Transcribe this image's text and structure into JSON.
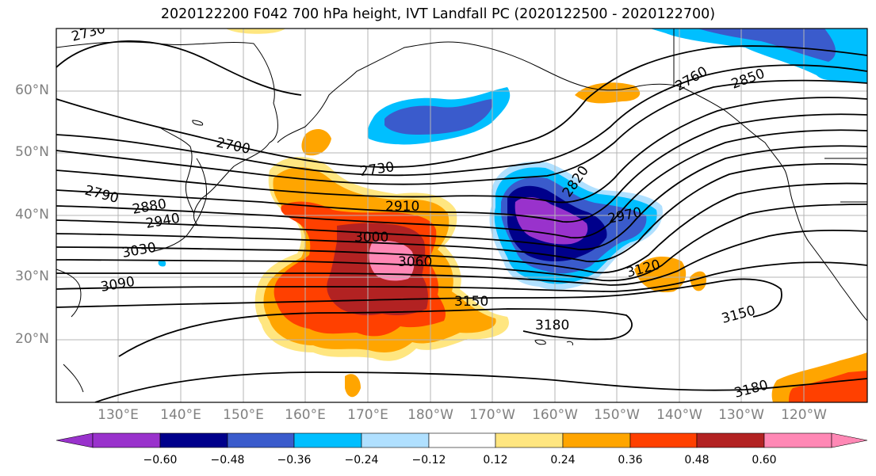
{
  "title": "2020122200 F042 700 hPa height, IVT Landfall PC (2020122500 - 2020122700)",
  "lat_labels": [
    "60°N",
    "50°N",
    "40°N",
    "30°N",
    "20°N"
  ],
  "lon_labels": [
    "130°E",
    "140°E",
    "150°E",
    "160°E",
    "170°E",
    "180°W",
    "170°W",
    "160°W",
    "150°W",
    "140°W",
    "130°W",
    "120°W"
  ],
  "contour_labels": [
    "2730",
    "2700",
    "2790",
    "2880",
    "2940",
    "3030",
    "3090",
    "2730",
    "2910",
    "3000",
    "3060",
    "3150",
    "3180",
    "2820",
    "2970",
    "2760",
    "2850",
    "3120",
    "3150",
    "3180"
  ],
  "colorbar": {
    "ticks": [
      "−0.60",
      "−0.48",
      "−0.36",
      "−0.24",
      "−0.12",
      "0.12",
      "0.24",
      "0.36",
      "0.48",
      "0.60"
    ],
    "colors": [
      "#9932cc",
      "#00008b",
      "#3a5bcc",
      "#00bfff",
      "#b0e0ff",
      "#ffffff",
      "#ffe680",
      "#ffa500",
      "#ff4000",
      "#b22222",
      "#ff88b5"
    ]
  }
}
